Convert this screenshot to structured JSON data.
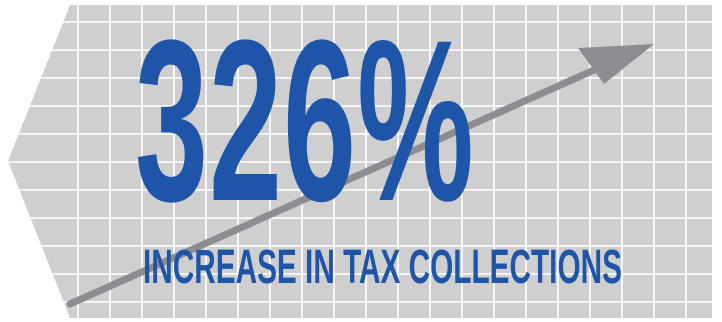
{
  "stat": {
    "value": "326%",
    "caption": "INCREASE IN TAX COLLECTIONS"
  },
  "colors": {
    "background_panel": "#cfcfd0",
    "grid_lines": "#ffffff",
    "text": "#1e55a9",
    "arrow": "#8c8d90"
  },
  "decorations": {
    "background": "gray grid panel with left-pointing notch",
    "arrow": "upward-trending arrow"
  }
}
